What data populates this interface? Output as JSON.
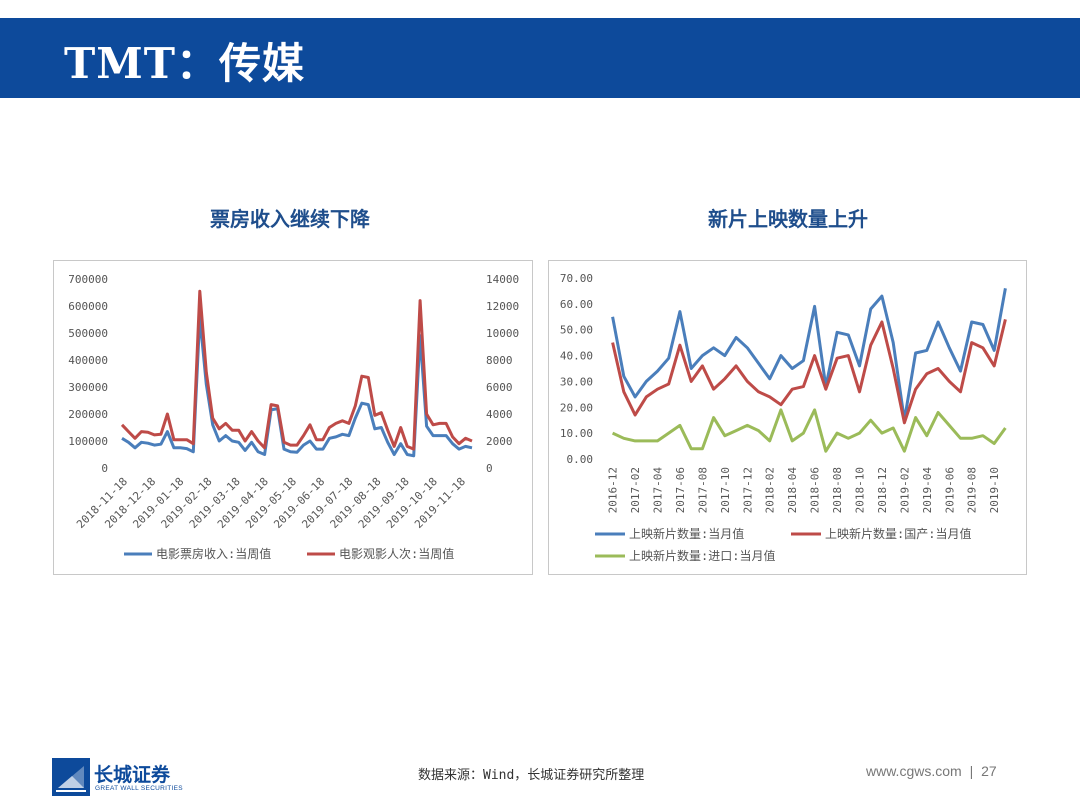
{
  "header": {
    "title": "TMT：传媒"
  },
  "charts": [
    {
      "title": "票房收入继续下降"
    },
    {
      "title": "新片上映数量上升"
    }
  ],
  "footer": {
    "logo_cn": "长城证券",
    "logo_en": "GREAT WALL SECURITIES",
    "source": "数据来源：Wind，长城证券研究所整理",
    "site": "www.cgws.com",
    "separator": "|",
    "page": "27"
  },
  "colors": {
    "header": "#0d4a9b",
    "blue": "#4a7ebb",
    "red": "#be4b48",
    "green": "#9bbb59"
  },
  "chart_data": [
    {
      "type": "line",
      "x_tick_labels": [
        "2018-11-18",
        "2018-12-18",
        "2019-01-18",
        "2019-02-18",
        "2019-03-18",
        "2019-04-18",
        "2019-05-18",
        "2019-06-18",
        "2019-07-18",
        "2019-08-18",
        "2019-09-18",
        "2019-10-18",
        "2019-11-18"
      ],
      "y_left_ticks": [
        "700000",
        "600000",
        "500000",
        "400000",
        "300000",
        "200000",
        "100000",
        "0"
      ],
      "y_right_ticks": [
        "14000",
        "12000",
        "10000",
        "8000",
        "6000",
        "4000",
        "2000",
        "0"
      ],
      "ylim_left": [
        0,
        700000
      ],
      "ylim_right": [
        0,
        14000
      ],
      "series": [
        {
          "name": "电影票房收入:当周值",
          "axis": "left",
          "color": "#4a7ebb",
          "values": [
            110000,
            95000,
            75000,
            95000,
            92000,
            85000,
            88000,
            135000,
            75000,
            75000,
            72000,
            60000,
            560000,
            310000,
            160000,
            100000,
            120000,
            100000,
            95000,
            65000,
            95000,
            60000,
            50000,
            215000,
            220000,
            70000,
            60000,
            58000,
            85000,
            100000,
            70000,
            70000,
            110000,
            115000,
            125000,
            120000,
            185000,
            240000,
            235000,
            145000,
            150000,
            95000,
            50000,
            90000,
            50000,
            45000,
            490000,
            155000,
            120000,
            120000,
            120000,
            90000,
            70000,
            80000,
            75000
          ]
        },
        {
          "name": "电影观影人次:当周值",
          "axis": "right",
          "color": "#be4b48",
          "values": [
            3200,
            2700,
            2200,
            2700,
            2650,
            2450,
            2500,
            4000,
            2100,
            2100,
            2100,
            1800,
            13100,
            7100,
            3700,
            2900,
            3300,
            2800,
            2800,
            2000,
            2700,
            2000,
            1500,
            4700,
            4600,
            1900,
            1700,
            1700,
            2400,
            3200,
            2100,
            2100,
            3000,
            3300,
            3500,
            3300,
            4600,
            6800,
            6700,
            3900,
            4100,
            2800,
            1600,
            3000,
            1600,
            1400,
            12400,
            4000,
            3200,
            3300,
            3300,
            2300,
            1800,
            2200,
            2000
          ]
        }
      ]
    },
    {
      "type": "line",
      "categories": [
        "2016-12",
        "2017-01",
        "2017-02",
        "2017-03",
        "2017-04",
        "2017-05",
        "2017-06",
        "2017-07",
        "2017-08",
        "2017-09",
        "2017-10",
        "2017-11",
        "2017-12",
        "2018-01",
        "2018-02",
        "2018-03",
        "2018-04",
        "2018-05",
        "2018-06",
        "2018-07",
        "2018-08",
        "2018-09",
        "2018-10",
        "2018-11",
        "2018-12",
        "2019-01",
        "2019-02",
        "2019-03",
        "2019-04",
        "2019-05",
        "2019-06",
        "2019-07",
        "2019-08",
        "2019-09",
        "2019-10",
        "2019-11"
      ],
      "x_tick_labels": [
        "2016-12",
        "2017-02",
        "2017-04",
        "2017-06",
        "2017-08",
        "2017-10",
        "2017-12",
        "2018-02",
        "2018-04",
        "2018-06",
        "2018-08",
        "2018-10",
        "2018-12",
        "2019-02",
        "2019-04",
        "2019-06",
        "2019-08",
        "2019-10"
      ],
      "y_ticks": [
        "70.00",
        "60.00",
        "50.00",
        "40.00",
        "30.00",
        "20.00",
        "10.00",
        "0.00"
      ],
      "ylim": [
        0,
        70
      ],
      "series": [
        {
          "name": "上映新片数量:当月值",
          "color": "#4a7ebb",
          "values": [
            55,
            32,
            24,
            30,
            34,
            39,
            57,
            35,
            40,
            43,
            40,
            47,
            43,
            37,
            31,
            40,
            35,
            38,
            59,
            28,
            49,
            48,
            36,
            58,
            63,
            45,
            15,
            41,
            42,
            53,
            43,
            34,
            53,
            52,
            42,
            66
          ]
        },
        {
          "name": "上映新片数量:国产:当月值",
          "color": "#be4b48",
          "values": [
            45,
            26,
            17,
            24,
            27,
            29,
            44,
            30,
            36,
            27,
            31,
            36,
            30,
            26,
            24,
            21,
            27,
            28,
            40,
            27,
            39,
            40,
            26,
            44,
            53,
            35,
            14,
            27,
            33,
            35,
            30,
            26,
            45,
            43,
            36,
            54
          ]
        },
        {
          "name": "上映新片数量:进口:当月值",
          "color": "#9bbb59",
          "values": [
            10,
            8,
            7,
            7,
            7,
            10,
            13,
            4,
            4,
            16,
            9,
            11,
            13,
            11,
            7,
            19,
            7,
            10,
            19,
            3,
            10,
            8,
            10,
            15,
            10,
            12,
            3,
            16,
            9,
            18,
            13,
            8,
            8,
            9,
            6,
            12
          ]
        }
      ]
    }
  ]
}
